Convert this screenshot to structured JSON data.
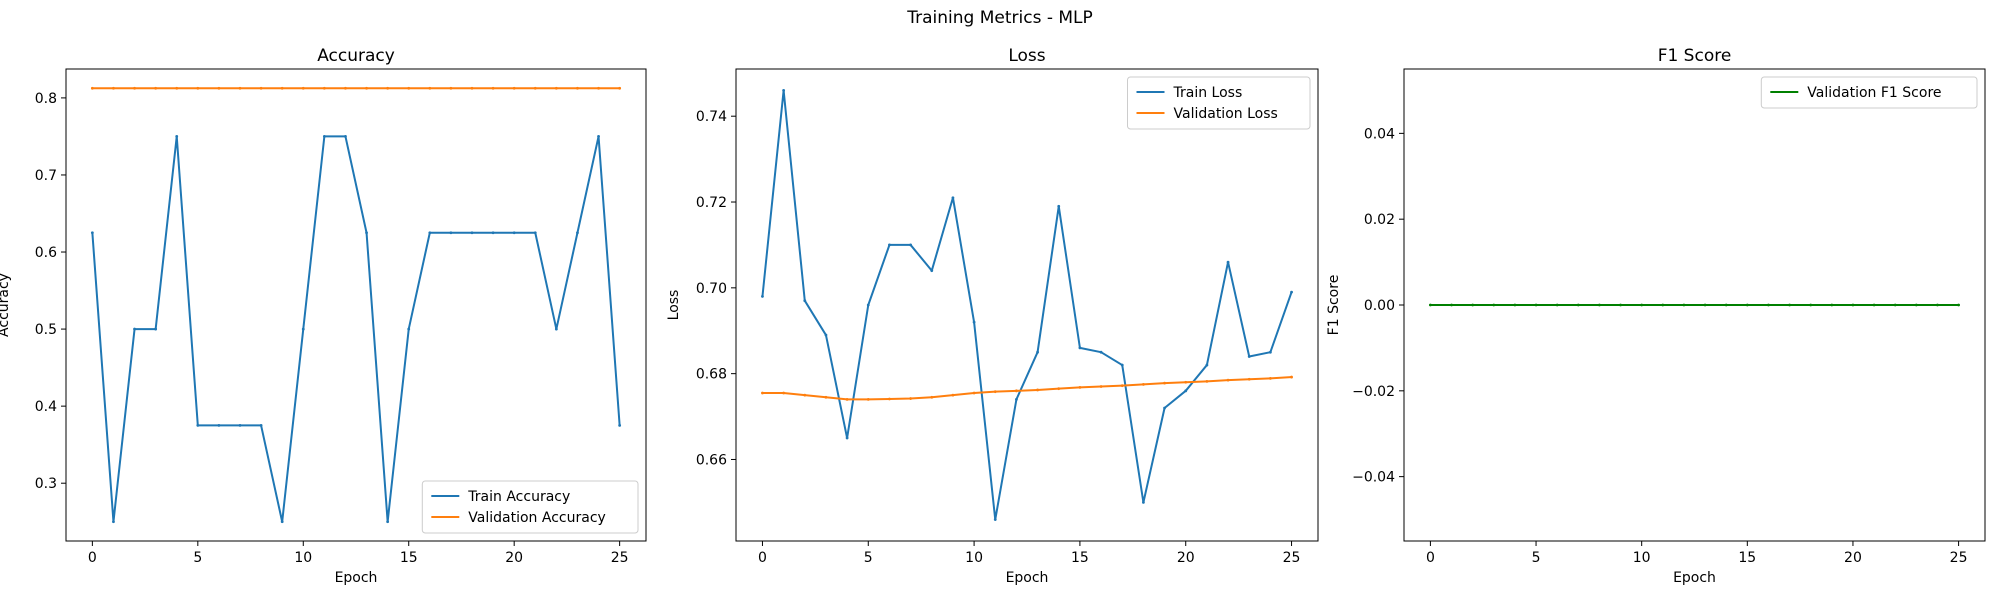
{
  "figure": {
    "title": "Training Metrics - MLP"
  },
  "colors": {
    "train": "#1f77b4",
    "validation": "#ff7f0e",
    "f1": "#008000"
  },
  "chart_data": [
    {
      "type": "line",
      "title": "Accuracy",
      "xlabel": "Epoch",
      "ylabel": "Accuracy",
      "xlim": [
        -1.25,
        26.25
      ],
      "ylim": [
        0.225,
        0.8375
      ],
      "xticks": [
        0,
        5,
        10,
        15,
        20,
        25
      ],
      "yticks": [
        0.3,
        0.4,
        0.5,
        0.6,
        0.7,
        0.8
      ],
      "ytick_labels": [
        "0.3",
        "0.4",
        "0.5",
        "0.6",
        "0.7",
        "0.8"
      ],
      "legend": "lower-right",
      "grid": false,
      "x": [
        0,
        1,
        2,
        3,
        4,
        5,
        6,
        7,
        8,
        9,
        10,
        11,
        12,
        13,
        14,
        15,
        16,
        17,
        18,
        19,
        20,
        21,
        22,
        23,
        24,
        25
      ],
      "series": [
        {
          "name": "Train Accuracy",
          "color": "#1f77b4",
          "values": [
            0.625,
            0.25,
            0.5,
            0.5,
            0.75,
            0.375,
            0.375,
            0.375,
            0.375,
            0.25,
            0.5,
            0.75,
            0.75,
            0.625,
            0.25,
            0.5,
            0.625,
            0.625,
            0.625,
            0.625,
            0.625,
            0.625,
            0.5,
            0.625,
            0.75,
            0.375
          ]
        },
        {
          "name": "Validation Accuracy",
          "color": "#ff7f0e",
          "values": [
            0.8125,
            0.8125,
            0.8125,
            0.8125,
            0.8125,
            0.8125,
            0.8125,
            0.8125,
            0.8125,
            0.8125,
            0.8125,
            0.8125,
            0.8125,
            0.8125,
            0.8125,
            0.8125,
            0.8125,
            0.8125,
            0.8125,
            0.8125,
            0.8125,
            0.8125,
            0.8125,
            0.8125,
            0.8125,
            0.8125
          ]
        }
      ]
    },
    {
      "type": "line",
      "title": "Loss",
      "xlabel": "Epoch",
      "ylabel": "Loss",
      "xlim": [
        -1.25,
        26.25
      ],
      "ylim": [
        0.641,
        0.751
      ],
      "xticks": [
        0,
        5,
        10,
        15,
        20,
        25
      ],
      "yticks": [
        0.66,
        0.68,
        0.7,
        0.72,
        0.74
      ],
      "ytick_labels": [
        "0.66",
        "0.68",
        "0.70",
        "0.72",
        "0.74"
      ],
      "legend": "top-right",
      "grid": false,
      "x": [
        0,
        1,
        2,
        3,
        4,
        5,
        6,
        7,
        8,
        9,
        10,
        11,
        12,
        13,
        14,
        15,
        16,
        17,
        18,
        19,
        20,
        21,
        22,
        23,
        24,
        25
      ],
      "series": [
        {
          "name": "Train Loss",
          "color": "#1f77b4",
          "values": [
            0.698,
            0.746,
            0.697,
            0.689,
            0.665,
            0.696,
            0.71,
            0.71,
            0.704,
            0.721,
            0.692,
            0.646,
            0.674,
            0.685,
            0.719,
            0.686,
            0.685,
            0.682,
            0.65,
            0.672,
            0.676,
            0.682,
            0.706,
            0.684,
            0.685,
            0.699
          ]
        },
        {
          "name": "Validation Loss",
          "color": "#ff7f0e",
          "values": [
            0.6755,
            0.6755,
            0.675,
            0.6745,
            0.674,
            0.674,
            0.6741,
            0.6742,
            0.6745,
            0.675,
            0.6755,
            0.6758,
            0.676,
            0.6762,
            0.6765,
            0.6768,
            0.677,
            0.6772,
            0.6775,
            0.6778,
            0.678,
            0.6782,
            0.6785,
            0.6787,
            0.6789,
            0.6792
          ]
        }
      ]
    },
    {
      "type": "line",
      "title": "F1 Score",
      "xlabel": "Epoch",
      "ylabel": "F1 Score",
      "xlim": [
        -1.25,
        26.25
      ],
      "ylim": [
        -0.055,
        0.055
      ],
      "xticks": [
        0,
        5,
        10,
        15,
        20,
        25
      ],
      "yticks": [
        -0.04,
        -0.02,
        0.0,
        0.02,
        0.04
      ],
      "ytick_labels": [
        "−0.04",
        "−0.02",
        "0.00",
        "0.02",
        "0.04"
      ],
      "legend": "top-right",
      "grid": false,
      "x": [
        0,
        1,
        2,
        3,
        4,
        5,
        6,
        7,
        8,
        9,
        10,
        11,
        12,
        13,
        14,
        15,
        16,
        17,
        18,
        19,
        20,
        21,
        22,
        23,
        24,
        25
      ],
      "series": [
        {
          "name": "Validation F1 Score",
          "color": "#008000",
          "values": [
            0,
            0,
            0,
            0,
            0,
            0,
            0,
            0,
            0,
            0,
            0,
            0,
            0,
            0,
            0,
            0,
            0,
            0,
            0,
            0,
            0,
            0,
            0,
            0,
            0,
            0
          ]
        }
      ]
    }
  ]
}
